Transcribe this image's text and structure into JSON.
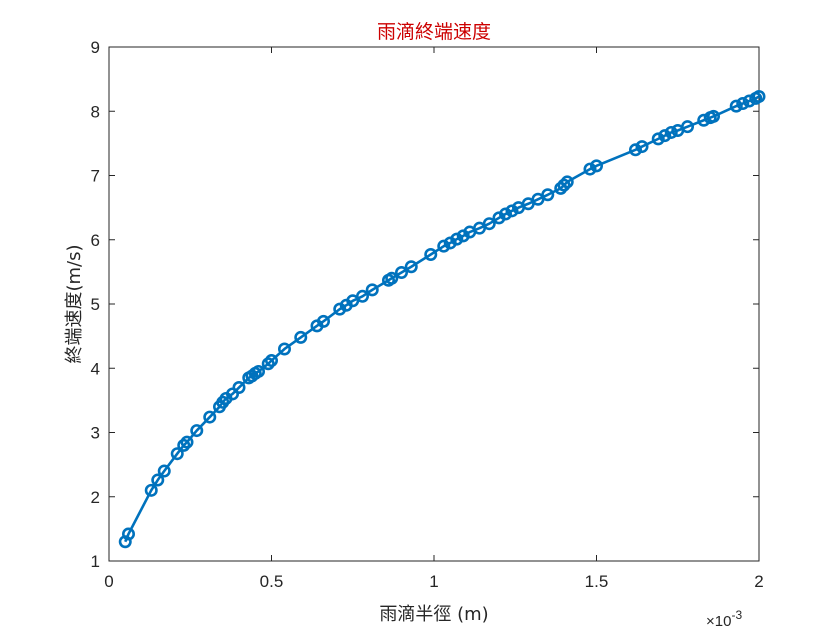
{
  "chart_data": {
    "type": "line",
    "title": "雨滴終端速度",
    "title_color": "#cc0000",
    "xlabel": "雨滴半徑 (m)",
    "ylabel": "終端速度(m/s)",
    "xlim": [
      0,
      0.002
    ],
    "ylim": [
      1,
      9
    ],
    "x_tick_labels": [
      "0",
      "0.5",
      "1",
      "1.5",
      "2"
    ],
    "x_exponent_label": {
      "base": "×10",
      "exponent": "-3"
    },
    "y_tick_labels": [
      "1",
      "2",
      "3",
      "4",
      "5",
      "6",
      "7",
      "8",
      "9"
    ],
    "grid": false,
    "legend": "none",
    "series": [
      {
        "color": "#0072BD",
        "marker": "circle",
        "x": [
          5e-05,
          6e-05,
          0.00013,
          0.00015,
          0.00017,
          0.00021,
          0.00023,
          0.00024,
          0.00027,
          0.00031,
          0.00034,
          0.00035,
          0.00036,
          0.00038,
          0.0004,
          0.00043,
          0.00044,
          0.00045,
          0.00046,
          0.00049,
          0.0005,
          0.00054,
          0.00059,
          0.00064,
          0.00066,
          0.00071,
          0.00073,
          0.00075,
          0.00078,
          0.00081,
          0.00086,
          0.00087,
          0.0009,
          0.00093,
          0.00099,
          0.00103,
          0.00105,
          0.00107,
          0.00109,
          0.00111,
          0.00114,
          0.00117,
          0.0012,
          0.00122,
          0.00124,
          0.00126,
          0.00129,
          0.00132,
          0.00135,
          0.00139,
          0.0014,
          0.00141,
          0.00148,
          0.0015,
          0.00162,
          0.00164,
          0.00169,
          0.00171,
          0.00173,
          0.00175,
          0.00178,
          0.00183,
          0.00185,
          0.00186,
          0.00193,
          0.00195,
          0.00197,
          0.00199,
          0.002
        ],
        "y": [
          1.3,
          1.42,
          2.1,
          2.26,
          2.4,
          2.67,
          2.8,
          2.85,
          3.03,
          3.24,
          3.4,
          3.47,
          3.53,
          3.6,
          3.7,
          3.85,
          3.88,
          3.92,
          3.95,
          4.07,
          4.12,
          4.3,
          4.48,
          4.66,
          4.73,
          4.92,
          4.98,
          5.05,
          5.12,
          5.22,
          5.37,
          5.4,
          5.49,
          5.58,
          5.77,
          5.9,
          5.95,
          6.01,
          6.06,
          6.12,
          6.18,
          6.25,
          6.34,
          6.4,
          6.45,
          6.5,
          6.56,
          6.63,
          6.7,
          6.8,
          6.85,
          6.9,
          7.1,
          7.15,
          7.4,
          7.45,
          7.57,
          7.62,
          7.67,
          7.7,
          7.76,
          7.86,
          7.9,
          7.92,
          8.08,
          8.12,
          8.16,
          8.2,
          8.23
        ]
      }
    ]
  }
}
